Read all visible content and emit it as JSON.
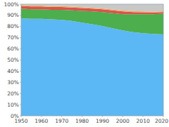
{
  "chart_data": {
    "type": "area",
    "stacked": true,
    "grid": true,
    "x": [
      1950,
      1955,
      1960,
      1965,
      1970,
      1975,
      1980,
      1985,
      1990,
      1995,
      2000,
      2005,
      2010,
      2015,
      2020
    ],
    "series": [
      {
        "color": "#5bb8f5",
        "values": [
          87.5,
          87.0,
          87.0,
          86.5,
          86.0,
          85.0,
          83.5,
          82.0,
          80.5,
          78.5,
          76.5,
          75.0,
          74.0,
          73.5,
          73.0
        ]
      },
      {
        "color": "#4cae4c",
        "values": [
          8.5,
          8.5,
          8.5,
          8.5,
          9.0,
          9.5,
          10.5,
          11.5,
          12.5,
          13.5,
          14.5,
          16.0,
          17.0,
          17.5,
          18.5
        ]
      },
      {
        "color": "#d9534f",
        "values": [
          2.5,
          2.5,
          2.5,
          2.5,
          2.5,
          2.5,
          2.5,
          2.5,
          2.5,
          2.5,
          2.5,
          2.0,
          1.8,
          1.6,
          1.4
        ]
      },
      {
        "color": "#f0ad4e",
        "values": [
          0.8,
          0.8,
          0.8,
          0.8,
          0.8,
          0.8,
          0.8,
          0.8,
          0.8,
          0.8,
          0.8,
          0.8,
          0.8,
          0.8,
          0.8
        ]
      },
      {
        "color": "#c8c8c8",
        "values": [
          0.7,
          1.2,
          1.2,
          1.7,
          1.7,
          2.2,
          2.7,
          3.2,
          3.7,
          4.7,
          5.7,
          6.2,
          6.4,
          6.6,
          6.3
        ]
      }
    ],
    "xlim": [
      1950,
      2020
    ],
    "ylim": [
      0,
      100
    ],
    "xticks": [
      1950,
      1960,
      1970,
      1980,
      1990,
      2000,
      2010,
      2020
    ],
    "yticks": [
      {
        "value": 0,
        "label": "0%"
      },
      {
        "value": 10,
        "label": "10%"
      },
      {
        "value": 20,
        "label": "20%"
      },
      {
        "value": 30,
        "label": "30%"
      },
      {
        "value": 40,
        "label": "40%"
      },
      {
        "value": 50,
        "label": "50%"
      },
      {
        "value": 60,
        "label": "60%"
      },
      {
        "value": 70,
        "label": "70%"
      },
      {
        "value": 80,
        "label": "80%"
      },
      {
        "value": 90,
        "label": "90%"
      },
      {
        "value": 100,
        "label": "100%"
      }
    ]
  }
}
